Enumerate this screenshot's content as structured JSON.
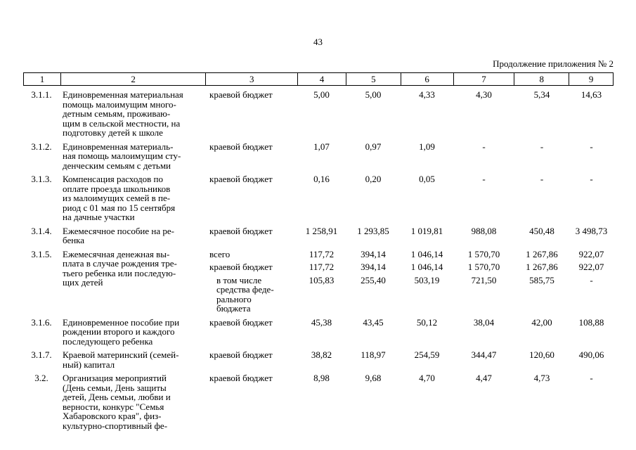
{
  "page": {
    "number": "43",
    "continuation": "Продолжение приложения № 2"
  },
  "table": {
    "header": [
      "1",
      "2",
      "3",
      "4",
      "5",
      "6",
      "7",
      "8",
      "9"
    ],
    "rows": [
      {
        "num": "3.1.1.",
        "name": "Единовременная материальная\nпомощь малоимущим много-\nдетным семьям, проживаю-\nщим в сельской местности, на\nподготовку детей к школе",
        "entries": [
          {
            "source": "краевой бюджет",
            "values": [
              "5,00",
              "5,00",
              "4,33",
              "4,30",
              "5,34",
              "14,63"
            ]
          }
        ]
      },
      {
        "num": "3.1.2.",
        "name": "Единовременная материаль-\nная помощь малоимущим сту-\nденческим семьям с детьми",
        "entries": [
          {
            "source": "краевой бюджет",
            "values": [
              "1,07",
              "0,97",
              "1,09",
              "-",
              "-",
              "-"
            ]
          }
        ]
      },
      {
        "num": "3.1.3.",
        "name": "Компенсация расходов по\nоплате проезда школьников\nиз малоимущих семей в пе-\nриод с 01 мая по 15 сентября\nна дачные участки",
        "entries": [
          {
            "source": "краевой бюджет",
            "values": [
              "0,16",
              "0,20",
              "0,05",
              "-",
              "-",
              "-"
            ]
          }
        ]
      },
      {
        "num": "3.1.4.",
        "name": "Ежемесячное пособие на ре-\nбенка",
        "entries": [
          {
            "source": "краевой бюджет",
            "values": [
              "1 258,91",
              "1 293,85",
              "1 019,81",
              "988,08",
              "450,48",
              "3 498,73"
            ]
          }
        ]
      },
      {
        "num": "3.1.5.",
        "name": "Ежемесячная денежная вы-\nплата в случае рождения тре-\nтьего ребенка или последую-\nщих детей",
        "entries": [
          {
            "source": "всего",
            "values": [
              "117,72",
              "394,14",
              "1 046,14",
              "1 570,70",
              "1 267,86",
              "922,07"
            ]
          },
          {
            "source": "краевой бюджет",
            "values": [
              "117,72",
              "394,14",
              "1 046,14",
              "1 570,70",
              "1 267,86",
              "922,07"
            ]
          },
          {
            "source": "в том числе\nсредства феде-\nрального\nбюджета",
            "values": [
              "105,83",
              "255,40",
              "503,19",
              "721,50",
              "585,75",
              "-"
            ]
          }
        ]
      },
      {
        "num": "3.1.6.",
        "name": "Единовременное пособие при\nрождении второго и каждого\nпоследующего ребенка",
        "entries": [
          {
            "source": "краевой бюджет",
            "values": [
              "45,38",
              "43,45",
              "50,12",
              "38,04",
              "42,00",
              "108,88"
            ]
          }
        ]
      },
      {
        "num": "3.1.7.",
        "name": "Краевой материнский (семей-\nный) капитал",
        "entries": [
          {
            "source": "краевой бюджет",
            "values": [
              "38,82",
              "118,97",
              "254,59",
              "344,47",
              "120,60",
              "490,06"
            ]
          }
        ]
      },
      {
        "num": "3.2.",
        "name": "Организация мероприятий\n(День семьи, День защиты\nдетей, День семьи, любви и\nверности, конкурс \"Семья\nХабаровского края\", физ-\nкультурно-спортивный фе-",
        "entries": [
          {
            "source": "краевой бюджет",
            "values": [
              "8,98",
              "9,68",
              "4,70",
              "4,47",
              "4,73",
              "-"
            ]
          }
        ]
      }
    ]
  }
}
